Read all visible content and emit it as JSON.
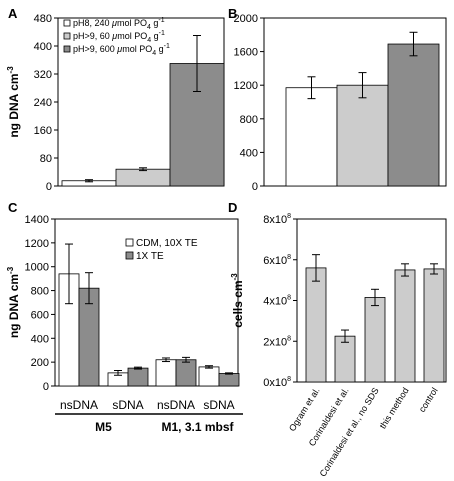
{
  "colors": {
    "white": "#ffffff",
    "light_gray": "#cccccc",
    "dark_gray": "#8c8c8c"
  },
  "chart_data": [
    {
      "panel": "A",
      "type": "bar",
      "ylabel_main": "ng DNA cm",
      "ylabel_sup": "-3",
      "ylim": [
        0,
        480
      ],
      "yticks": [
        0,
        80,
        160,
        240,
        320,
        400,
        480
      ],
      "legend_placement": "top-left",
      "series": [
        {
          "name_main": "pH8, 240 ",
          "name_mu": "μ",
          "name_rest": "mol PO",
          "name_sub": "4",
          "name_tail": " g",
          "name_sup": "-1",
          "value": 15,
          "err": 3,
          "color": "#ffffff"
        },
        {
          "name_main": "pH>9, 60 ",
          "name_mu": "μ",
          "name_rest": "mol PO",
          "name_sub": "4",
          "name_tail": " g",
          "name_sup": "-1",
          "value": 48,
          "err": 4,
          "color": "#cccccc"
        },
        {
          "name_main": "pH>9, 600 ",
          "name_mu": "μ",
          "name_rest": "mol PO",
          "name_sub": "4",
          "name_tail": " g",
          "name_sup": "-1",
          "value": 350,
          "err": 80,
          "color": "#8c8c8c"
        }
      ]
    },
    {
      "panel": "B",
      "type": "bar",
      "ylim": [
        0,
        2000
      ],
      "yticks": [
        0,
        400,
        800,
        1200,
        1600,
        2000
      ],
      "series": [
        {
          "value": 1170,
          "err": 130,
          "color": "#ffffff"
        },
        {
          "value": 1200,
          "err": 150,
          "color": "#cccccc"
        },
        {
          "value": 1690,
          "err": 140,
          "color": "#8c8c8c"
        }
      ]
    },
    {
      "panel": "C",
      "type": "bar",
      "ylabel_main": "ng DNA cm",
      "ylabel_sup": "-3",
      "ylim": [
        0,
        1400
      ],
      "yticks": [
        0,
        200,
        400,
        600,
        800,
        1000,
        1200,
        1400
      ],
      "legend_placement": "top-center",
      "categories": [
        "nsDNA",
        "sDNA",
        "nsDNA",
        "sDNA"
      ],
      "groups": [
        {
          "label": "M5",
          "span": [
            0,
            1
          ]
        },
        {
          "label": "M1, 3.1 mbsf",
          "span": [
            2,
            3
          ]
        }
      ],
      "series": [
        {
          "name": "CDM, 10X TE",
          "color": "#ffffff",
          "values": [
            940,
            110,
            220,
            160
          ],
          "errs": [
            250,
            20,
            15,
            10
          ]
        },
        {
          "name": "1X TE",
          "color": "#8c8c8c",
          "values": [
            820,
            150,
            220,
            105
          ],
          "errs": [
            130,
            8,
            20,
            5
          ]
        }
      ]
    },
    {
      "panel": "D",
      "type": "bar",
      "ylabel": "cells cm",
      "ylabel_sup": "-3",
      "ylim_e8": [
        0,
        8
      ],
      "yticks_e8": [
        0,
        2,
        4,
        6,
        8
      ],
      "ytick_labels": [
        {
          "m": "0x10",
          "e": "8"
        },
        {
          "m": "2x10",
          "e": "8"
        },
        {
          "m": "4x10",
          "e": "8"
        },
        {
          "m": "6x10",
          "e": "8"
        },
        {
          "m": "8x10",
          "e": "8"
        }
      ],
      "categories": [
        "Ogram et al.",
        "Corinaldesi et al.",
        "Corinaldesi et al., no SDS",
        "this method",
        "control"
      ],
      "values_e8": [
        5.6,
        2.25,
        4.15,
        5.5,
        5.55
      ],
      "errs_e8": [
        0.65,
        0.3,
        0.4,
        0.3,
        0.25
      ],
      "color": "#cccccc"
    }
  ]
}
